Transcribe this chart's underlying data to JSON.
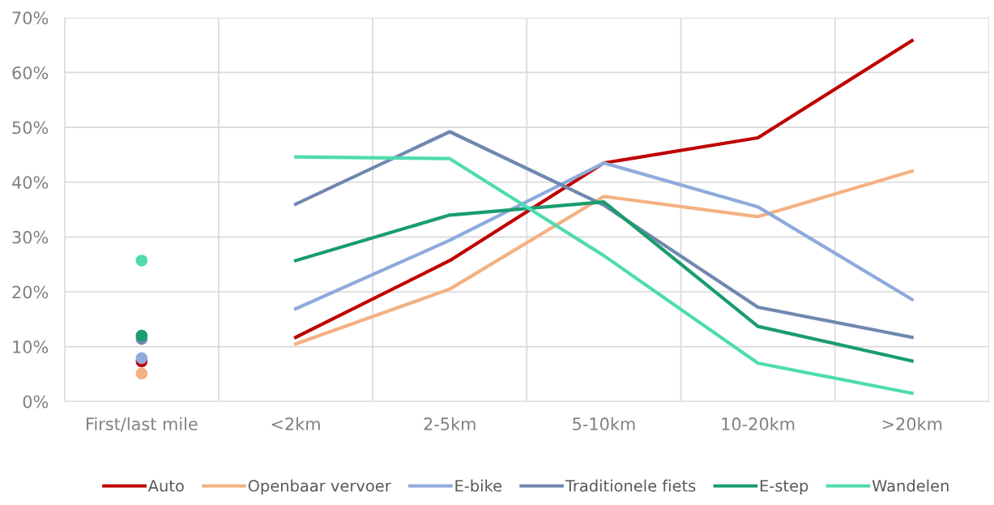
{
  "chart_data": {
    "type": "line",
    "categories": [
      "First/last mile",
      "<2km",
      "2-5km",
      "5-10km",
      "10-20km",
      ">20km"
    ],
    "ylim": [
      0,
      70
    ],
    "yticks": [
      {
        "value": 0,
        "label": "0%"
      },
      {
        "value": 10,
        "label": "10%"
      },
      {
        "value": 20,
        "label": "20%"
      },
      {
        "value": 30,
        "label": "30%"
      },
      {
        "value": 40,
        "label": "40%"
      },
      {
        "value": 50,
        "label": "50%"
      },
      {
        "value": 60,
        "label": "60%"
      },
      {
        "value": 70,
        "label": "70%"
      }
    ],
    "grid": true,
    "legend": "bottom",
    "marker": "none",
    "line_style": "solid",
    "series": [
      {
        "name": "Auto",
        "color": "#c00000",
        "values": [
          null,
          11.7,
          25.7,
          43.5,
          48.1,
          65.8
        ]
      },
      {
        "name": "Openbaar vervoer",
        "color": "#f4b183",
        "values": [
          null,
          10.5,
          20.5,
          37.4,
          33.7,
          42.0
        ]
      },
      {
        "name": "E-bike",
        "color": "#8faadc",
        "values": [
          null,
          16.9,
          29.4,
          43.5,
          35.5,
          18.6
        ]
      },
      {
        "name": "Traditionele fiets",
        "color": "#7088b0",
        "values": [
          null,
          36.0,
          49.2,
          35.8,
          17.2,
          11.7
        ]
      },
      {
        "name": "E-step",
        "color": "#1a9c6e",
        "values": [
          null,
          25.7,
          34.0,
          36.4,
          13.7,
          7.4
        ]
      },
      {
        "name": "Wandelen",
        "color": "#4fdbb0",
        "values": [
          null,
          44.6,
          44.3,
          26.6,
          7.0,
          1.5
        ]
      },
      {
        "type": "scatter",
        "marker": "circle",
        "color": "#f4b183",
        "values": [
          5.1,
          null,
          null,
          null,
          null,
          null
        ]
      },
      {
        "type": "scatter",
        "marker": "circle",
        "color": "#c00000",
        "values": [
          7.3,
          null,
          null,
          null,
          null,
          null
        ]
      },
      {
        "type": "scatter",
        "marker": "circle",
        "color": "#8faadc",
        "values": [
          7.9,
          null,
          null,
          null,
          null,
          null
        ]
      },
      {
        "type": "scatter",
        "marker": "circle",
        "color": "#7088b0",
        "values": [
          11.4,
          null,
          null,
          null,
          null,
          null
        ]
      },
      {
        "type": "scatter",
        "marker": "circle",
        "color": "#1a9c6e",
        "values": [
          12.0,
          null,
          null,
          null,
          null,
          null
        ]
      },
      {
        "type": "scatter",
        "marker": "circle",
        "color": "#4fdbb0",
        "values": [
          25.7,
          null,
          null,
          null,
          null,
          null
        ]
      }
    ]
  }
}
